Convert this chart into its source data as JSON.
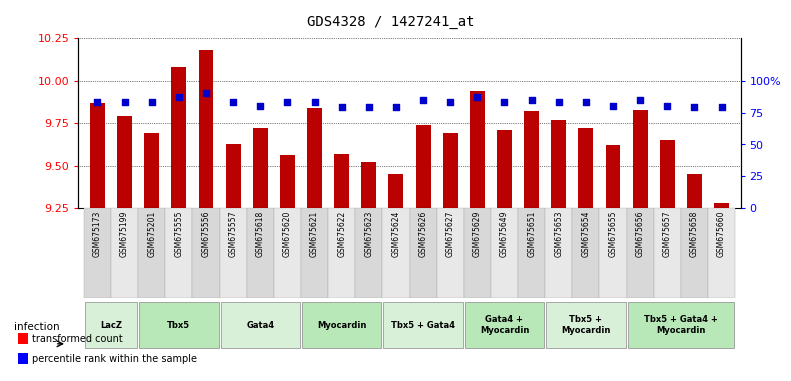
{
  "title": "GDS4328 / 1427241_at",
  "samples": [
    "GSM675173",
    "GSM675199",
    "GSM675201",
    "GSM675555",
    "GSM675556",
    "GSM675557",
    "GSM675618",
    "GSM675620",
    "GSM675621",
    "GSM675622",
    "GSM675623",
    "GSM675624",
    "GSM675626",
    "GSM675627",
    "GSM675629",
    "GSM675649",
    "GSM675651",
    "GSM675653",
    "GSM675654",
    "GSM675655",
    "GSM675656",
    "GSM675657",
    "GSM675658",
    "GSM675660"
  ],
  "bar_values": [
    9.87,
    9.79,
    9.69,
    10.08,
    10.18,
    9.63,
    9.72,
    9.56,
    9.84,
    9.57,
    9.52,
    9.45,
    9.74,
    9.69,
    9.94,
    9.71,
    9.82,
    9.77,
    9.72,
    9.62,
    9.83,
    9.65,
    9.45,
    9.28
  ],
  "percentile_values": [
    83,
    83,
    83,
    87,
    90,
    83,
    80,
    83,
    83,
    79,
    79,
    79,
    85,
    83,
    87,
    83,
    85,
    83,
    83,
    80,
    85,
    80,
    79,
    79
  ],
  "groups": [
    {
      "label": "LacZ",
      "start": 0,
      "end": 2,
      "color": "#d8f0d8"
    },
    {
      "label": "Tbx5",
      "start": 2,
      "end": 5,
      "color": "#b8e8b8"
    },
    {
      "label": "Gata4",
      "start": 5,
      "end": 8,
      "color": "#d8f0d8"
    },
    {
      "label": "Myocardin",
      "start": 8,
      "end": 11,
      "color": "#b8e8b8"
    },
    {
      "label": "Tbx5 + Gata4",
      "start": 11,
      "end": 14,
      "color": "#d8f0d8"
    },
    {
      "label": "Gata4 +\nMyocardin",
      "start": 14,
      "end": 17,
      "color": "#b8e8b8"
    },
    {
      "label": "Tbx5 +\nMyocardin",
      "start": 17,
      "end": 20,
      "color": "#d8f0d8"
    },
    {
      "label": "Tbx5 + Gata4 +\nMyocardin",
      "start": 20,
      "end": 24,
      "color": "#b8e8b8"
    }
  ],
  "ylim_left": [
    9.25,
    10.25
  ],
  "yticks_left": [
    9.25,
    9.5,
    9.75,
    10.0,
    10.25
  ],
  "ylim_right": [
    0,
    133.33
  ],
  "yticks_right": [
    0,
    25,
    50,
    75,
    100
  ],
  "ytick_labels_right": [
    "0",
    "25",
    "50",
    "75",
    "100%"
  ],
  "bar_color": "#bb0000",
  "dot_color": "#0000cc",
  "background_color": "#ffffff",
  "infection_label": "infection"
}
